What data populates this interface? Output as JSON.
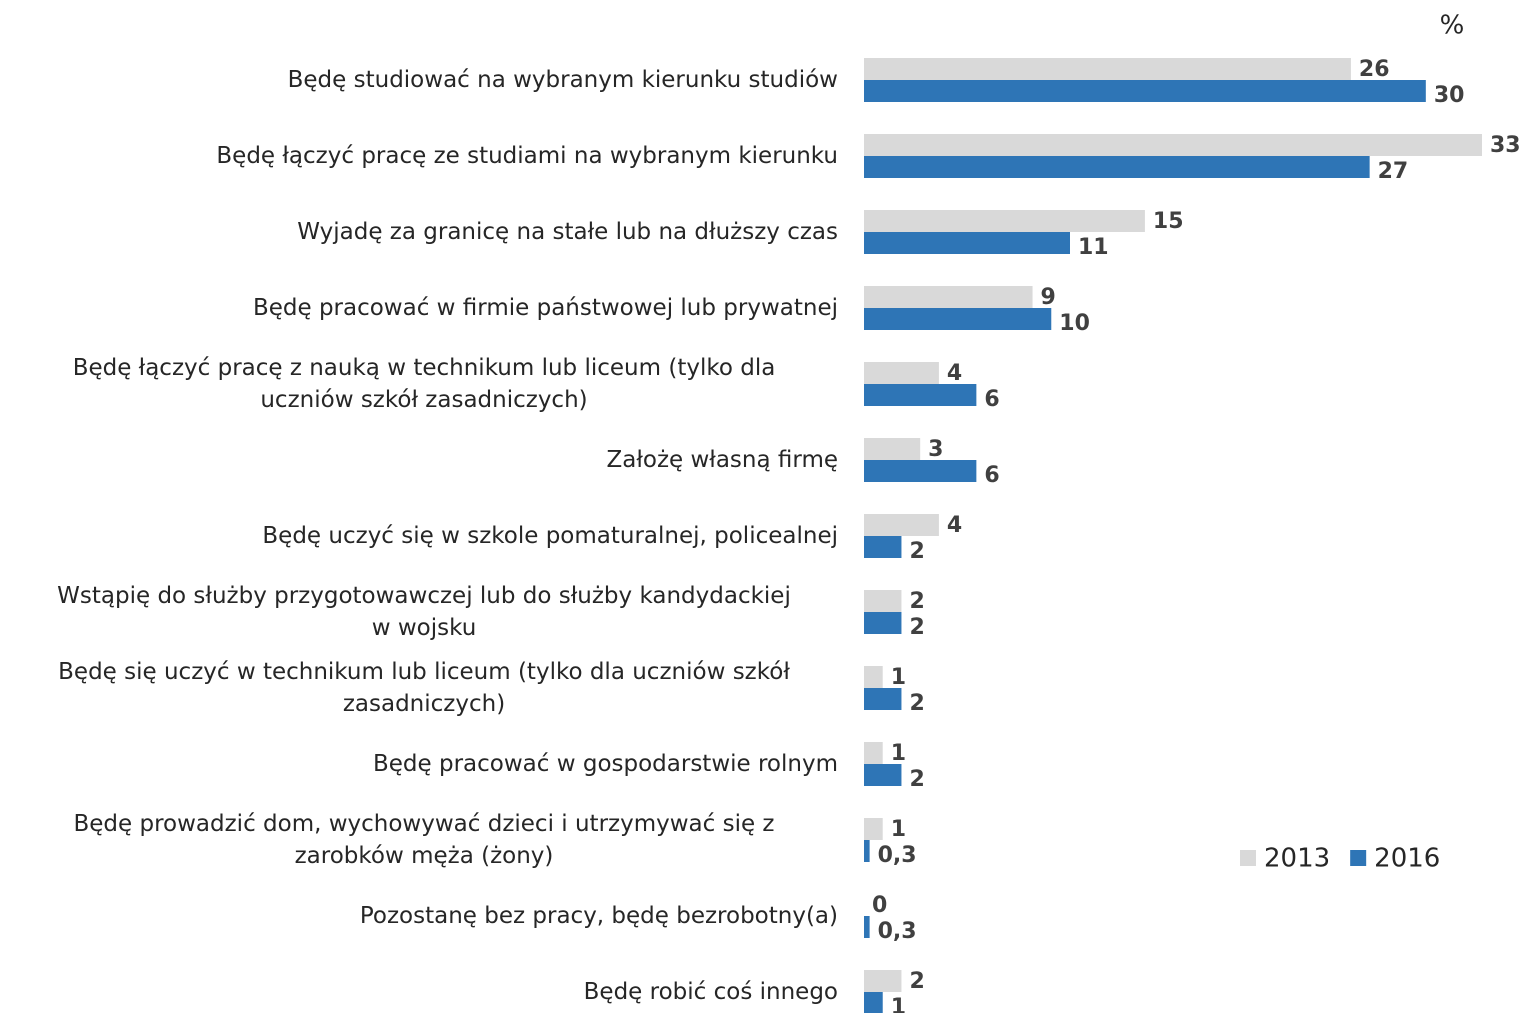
{
  "chart_data": {
    "type": "bar",
    "orientation": "horizontal",
    "unit_label": "%",
    "categories": [
      "Będę studiować na wybranym kierunku studiów",
      "Będę łączyć pracę ze studiami na wybranym kierunku",
      "Wyjadę za granicę na stałe lub na dłuższy czas",
      "Będę pracować w firmie państwowej lub prywatnej",
      "Będę łączyć pracę z nauką w technikum lub liceum (tylko dla\nuczniów szkół zasadniczych)",
      "Założę własną firmę",
      "Będę uczyć się w szkole pomaturalnej, policealnej",
      "Wstąpię do służby przygotowawczej lub do służby kandydackiej\nw wojsku",
      "Będę się uczyć w technikum lub liceum (tylko dla uczniów szkół\nzasadniczych)",
      "Będę pracować w gospodarstwie rolnym",
      "Będę prowadzić dom, wychowywać dzieci i utrzymywać się z\nzarobków męża (żony)",
      "Pozostanę bez pracy, będę bezrobotny(a)",
      "Będę robić coś innego"
    ],
    "series": [
      {
        "name": "2013",
        "color": "#d9d9d9",
        "values": [
          26,
          33,
          15,
          9,
          4,
          3,
          4,
          2,
          1,
          1,
          1,
          0,
          2
        ]
      },
      {
        "name": "2016",
        "color": "#2e75b6",
        "values": [
          30,
          27,
          11,
          10,
          6,
          6,
          2,
          2,
          2,
          2,
          0.3,
          0.3,
          1
        ],
        "value_labels": [
          "30",
          "27",
          "11",
          "10",
          "6",
          "6",
          "2",
          "2",
          "2",
          "2",
          "0,3",
          "0,3",
          "1"
        ]
      }
    ],
    "legend": "right"
  }
}
